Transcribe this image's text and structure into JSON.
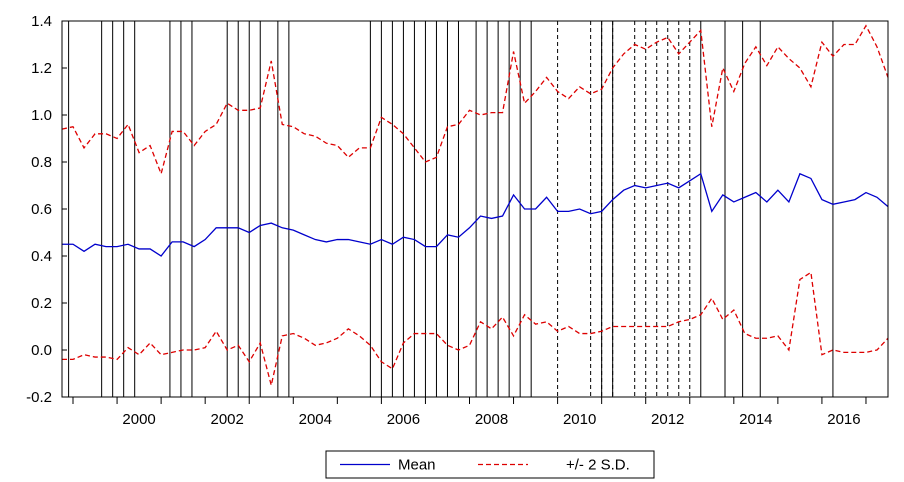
{
  "chart_data": {
    "type": "line",
    "title": "",
    "xlabel": "",
    "ylabel": "",
    "x_start": 1998.75,
    "x_end": 2017.5,
    "xlim": [
      1998.75,
      2017.5
    ],
    "ylim": [
      -0.2,
      1.4
    ],
    "x_ticks": [
      2000,
      2002,
      2004,
      2006,
      2008,
      2010,
      2012,
      2014,
      2016
    ],
    "x_tick_labels": [
      "2000",
      "2002",
      "2004",
      "2006",
      "2008",
      "2010",
      "2012",
      "2014",
      "2016"
    ],
    "y_ticks": [
      -0.2,
      0.0,
      0.2,
      0.4,
      0.6,
      0.8,
      1.0,
      1.2,
      1.4
    ],
    "y_tick_labels": [
      "-0.2",
      "0.0",
      "0.2",
      "0.4",
      "0.6",
      "0.8",
      "1.0",
      "1.2",
      "1.4"
    ],
    "grid": false,
    "legend": {
      "placement": "bottom-center"
    },
    "series": [
      {
        "name": "Mean",
        "color": "#0000cc",
        "style": "solid",
        "values": [
          0.45,
          0.45,
          0.42,
          0.45,
          0.44,
          0.44,
          0.45,
          0.43,
          0.43,
          0.4,
          0.46,
          0.46,
          0.44,
          0.47,
          0.52,
          0.52,
          0.52,
          0.5,
          0.53,
          0.54,
          0.52,
          0.51,
          0.49,
          0.47,
          0.46,
          0.47,
          0.47,
          0.46,
          0.45,
          0.47,
          0.45,
          0.48,
          0.47,
          0.44,
          0.44,
          0.49,
          0.48,
          0.52,
          0.57,
          0.56,
          0.57,
          0.66,
          0.6,
          0.6,
          0.65,
          0.59,
          0.59,
          0.6,
          0.58,
          0.59,
          0.64,
          0.68,
          0.7,
          0.69,
          0.7,
          0.71,
          0.69,
          0.72,
          0.75,
          0.59,
          0.66,
          0.63,
          0.65,
          0.67,
          0.63,
          0.68,
          0.63,
          0.75,
          0.73,
          0.64,
          0.62,
          0.63,
          0.64,
          0.67,
          0.65,
          0.61
        ]
      },
      {
        "name": "+/- 2 S.D.",
        "color": "#dd0000",
        "style": "dashed",
        "values": [
          0.94,
          0.95,
          0.86,
          0.92,
          0.92,
          0.9,
          0.96,
          0.84,
          0.87,
          0.75,
          0.93,
          0.93,
          0.87,
          0.93,
          0.96,
          1.05,
          1.02,
          1.02,
          1.03,
          1.23,
          0.96,
          0.95,
          0.92,
          0.91,
          0.88,
          0.87,
          0.82,
          0.86,
          0.86,
          0.99,
          0.96,
          0.92,
          0.86,
          0.8,
          0.82,
          0.95,
          0.96,
          1.02,
          1.0,
          1.01,
          1.01,
          1.27,
          1.05,
          1.1,
          1.16,
          1.1,
          1.07,
          1.12,
          1.09,
          1.11,
          1.2,
          1.26,
          1.3,
          1.28,
          1.31,
          1.33,
          1.26,
          1.31,
          1.36,
          0.95,
          1.2,
          1.1,
          1.22,
          1.29,
          1.21,
          1.29,
          1.24,
          1.2,
          1.12,
          1.31,
          1.25,
          1.3,
          1.3,
          1.38,
          1.29,
          1.16
        ]
      },
      {
        "name": "",
        "color": "#dd0000",
        "style": "dashed",
        "values": [
          -0.04,
          -0.04,
          -0.02,
          -0.03,
          -0.03,
          -0.04,
          0.01,
          -0.02,
          0.03,
          -0.02,
          -0.01,
          0.0,
          0.0,
          0.01,
          0.08,
          0.0,
          0.02,
          -0.05,
          0.03,
          -0.15,
          0.06,
          0.07,
          0.05,
          0.02,
          0.03,
          0.05,
          0.09,
          0.06,
          0.02,
          -0.05,
          -0.08,
          0.03,
          0.07,
          0.07,
          0.07,
          0.02,
          0.0,
          0.02,
          0.12,
          0.09,
          0.14,
          0.06,
          0.15,
          0.11,
          0.12,
          0.08,
          0.1,
          0.07,
          0.07,
          0.08,
          0.1,
          0.1,
          0.1,
          0.1,
          0.1,
          0.1,
          0.12,
          0.13,
          0.15,
          0.22,
          0.13,
          0.17,
          0.07,
          0.05,
          0.05,
          0.06,
          0.0,
          0.3,
          0.33,
          -0.02,
          0.0,
          -0.01,
          -0.01,
          -0.01,
          0.0,
          0.05
        ]
      }
    ],
    "break_lines": {
      "solid": [
        1998.9,
        1999.65,
        1999.9,
        2000.15,
        2000.4,
        2001.2,
        2001.45,
        2001.7,
        2002.5,
        2002.75,
        2003.0,
        2003.25,
        2003.65,
        2003.9,
        2005.75,
        2006.0,
        2006.25,
        2006.5,
        2006.75,
        2007.0,
        2007.25,
        2007.5,
        2007.75,
        2008.15,
        2008.4,
        2008.65,
        2008.9,
        2009.15,
        2009.4,
        2011.0,
        2011.25,
        2013.25,
        2013.8,
        2014.2,
        2014.6,
        2016.25
      ],
      "dashed": [
        2010.0,
        2010.75,
        2011.0,
        2011.25,
        2011.75,
        2012.0,
        2012.25,
        2012.5,
        2012.75,
        2013.0
      ]
    }
  }
}
